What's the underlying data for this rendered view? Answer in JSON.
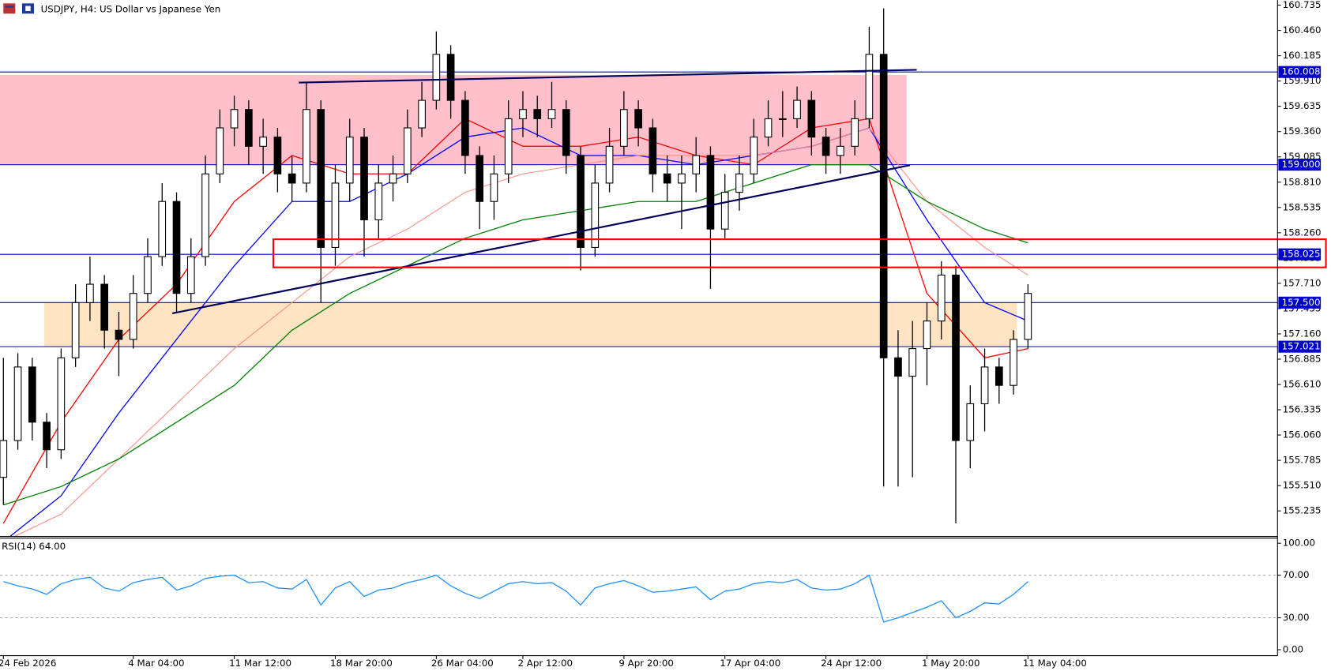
{
  "chart_data": [
    {
      "type": "candlestick",
      "title": "USDJPY, H4:  US Dollar vs Japanese Yen",
      "categories": [
        "24 Feb 2026",
        null,
        null,
        null,
        null,
        null,
        null,
        null,
        null,
        "4 Mar 04:00",
        null,
        null,
        null,
        null,
        null,
        null,
        "11 Mar 12:00",
        null,
        null,
        null,
        null,
        null,
        null,
        "18 Mar 20:00",
        null,
        null,
        null,
        null,
        null,
        null,
        "26 Mar 04:00",
        null,
        null,
        null,
        null,
        null,
        "2 Apr 12:00",
        null,
        null,
        null,
        null,
        null,
        null,
        "9 Apr 20:00",
        null,
        null,
        null,
        null,
        null,
        null,
        "17 Apr 04:00",
        null,
        null,
        null,
        null,
        null,
        null,
        "24 Apr 12:00",
        null,
        null,
        null,
        null,
        null,
        null,
        "1 May 20:00",
        null,
        null,
        null,
        null,
        null,
        null,
        "11 May 04:00"
      ],
      "open": [
        155.6,
        156.0,
        156.8,
        156.2,
        155.9,
        156.9,
        157.5,
        157.7,
        157.2,
        157.1,
        157.6,
        158.0,
        158.6,
        157.6,
        158.0,
        158.9,
        159.4,
        159.6,
        159.2,
        159.3,
        158.9,
        158.8,
        159.6,
        158.1,
        158.8,
        159.3,
        158.4,
        158.8,
        158.9,
        159.4,
        159.7,
        160.2,
        159.7,
        159.1,
        158.6,
        158.9,
        159.5,
        159.6,
        159.5,
        159.6,
        159.1,
        158.1,
        158.8,
        159.2,
        159.6,
        159.4,
        158.9,
        158.8,
        158.9,
        159.1,
        158.3,
        158.7,
        158.9,
        159.3,
        159.5,
        159.5,
        159.7,
        159.3,
        159.1,
        159.2,
        159.5,
        160.2,
        156.9,
        156.7,
        157.0,
        157.3,
        157.8,
        156.0,
        156.4,
        156.8,
        156.6,
        157.1
      ],
      "high": [
        156.9,
        156.95,
        156.9,
        156.3,
        157.0,
        157.7,
        158.0,
        157.8,
        157.4,
        157.8,
        158.2,
        158.8,
        158.7,
        158.2,
        159.1,
        159.6,
        159.75,
        159.7,
        159.5,
        159.4,
        159.1,
        159.9,
        159.7,
        159.0,
        159.5,
        159.4,
        159.0,
        159.1,
        159.6,
        159.9,
        160.45,
        160.3,
        159.8,
        159.2,
        159.1,
        159.7,
        159.8,
        159.75,
        159.9,
        159.7,
        159.2,
        159.0,
        159.4,
        159.8,
        159.7,
        159.5,
        159.1,
        159.1,
        159.3,
        159.2,
        158.9,
        159.1,
        159.5,
        159.7,
        159.8,
        159.85,
        159.8,
        159.4,
        159.4,
        159.7,
        160.5,
        160.7,
        157.2,
        157.3,
        157.5,
        157.95,
        157.9,
        156.6,
        157.0,
        156.9,
        157.2,
        157.7
      ],
      "low": [
        155.3,
        155.9,
        156.0,
        155.7,
        155.8,
        156.8,
        157.3,
        157.0,
        156.7,
        157.0,
        157.5,
        157.9,
        157.4,
        157.5,
        157.9,
        158.8,
        159.2,
        159.0,
        158.9,
        158.7,
        158.6,
        158.7,
        157.5,
        157.9,
        158.6,
        158.0,
        158.2,
        158.6,
        158.8,
        159.3,
        159.6,
        159.5,
        158.9,
        158.3,
        158.4,
        158.8,
        159.3,
        159.3,
        159.4,
        158.9,
        157.85,
        158.0,
        158.7,
        159.1,
        159.2,
        158.7,
        158.6,
        158.3,
        158.7,
        157.65,
        158.2,
        158.5,
        158.8,
        159.2,
        159.3,
        159.4,
        159.1,
        158.9,
        158.9,
        159.1,
        159.4,
        155.5,
        155.5,
        155.6,
        156.6,
        157.1,
        155.1,
        155.7,
        156.1,
        156.4,
        156.5,
        157.0
      ],
      "close": [
        156.0,
        156.8,
        156.2,
        155.9,
        156.9,
        157.5,
        157.7,
        157.2,
        157.1,
        157.6,
        158.0,
        158.6,
        157.6,
        158.0,
        158.9,
        159.4,
        159.6,
        159.2,
        159.3,
        158.9,
        158.8,
        159.6,
        158.1,
        158.8,
        159.3,
        158.4,
        158.8,
        158.9,
        159.4,
        159.7,
        160.2,
        159.7,
        159.1,
        158.6,
        158.9,
        159.5,
        159.6,
        159.5,
        159.6,
        159.1,
        158.1,
        158.8,
        159.2,
        159.6,
        159.4,
        158.9,
        158.8,
        158.9,
        159.1,
        158.3,
        158.7,
        158.9,
        159.3,
        159.5,
        159.5,
        159.7,
        159.3,
        159.1,
        159.2,
        159.5,
        160.2,
        156.9,
        156.7,
        157.0,
        157.3,
        157.8,
        156.0,
        156.4,
        156.8,
        156.6,
        157.1,
        157.6
      ],
      "up_color": "#ffffff",
      "down_color": "#000000",
      "series": [
        {
          "color": "#ff0000",
          "x": [
            0,
            4,
            8,
            12,
            16,
            20,
            24,
            28,
            32,
            36,
            40,
            44,
            48,
            52,
            56,
            60,
            64,
            68,
            71
          ],
          "values": [
            155.1,
            156.2,
            157.1,
            157.7,
            158.6,
            159.1,
            158.9,
            158.9,
            159.5,
            159.2,
            159.2,
            159.3,
            159.1,
            159.0,
            159.4,
            159.5,
            157.6,
            156.9,
            157.0
          ]
        },
        {
          "color": "#0000ff",
          "x": [
            0,
            4,
            8,
            12,
            16,
            20,
            24,
            28,
            32,
            36,
            40,
            44,
            48,
            52,
            56,
            60,
            64,
            68,
            71
          ],
          "values": [
            154.9,
            155.4,
            156.3,
            157.1,
            157.9,
            158.6,
            158.6,
            158.9,
            159.3,
            159.4,
            159.1,
            159.1,
            159.0,
            159.1,
            159.2,
            159.4,
            158.4,
            157.5,
            157.3
          ]
        },
        {
          "color": "#ff8c80",
          "x": [
            0,
            4,
            8,
            12,
            16,
            20,
            24,
            28,
            32,
            36,
            40,
            44,
            48,
            52,
            56,
            60,
            64,
            68,
            71
          ],
          "values": [
            154.9,
            155.2,
            155.8,
            156.4,
            157.0,
            157.5,
            158.0,
            158.3,
            158.7,
            158.9,
            159.0,
            159.1,
            159.1,
            159.1,
            159.2,
            159.4,
            158.6,
            158.1,
            157.8
          ]
        },
        {
          "color": "#008000",
          "x": [
            0,
            4,
            8,
            12,
            16,
            20,
            24,
            28,
            32,
            36,
            40,
            44,
            48,
            52,
            56,
            60,
            64,
            68,
            71
          ],
          "values": [
            155.3,
            155.5,
            155.8,
            156.2,
            156.6,
            157.2,
            157.6,
            157.9,
            158.2,
            158.4,
            158.5,
            158.6,
            158.6,
            158.8,
            159.0,
            159.0,
            158.6,
            158.3,
            158.15
          ]
        }
      ],
      "levels": [
        160.008,
        {
          "value": 159,
          "label": "159.000"
        },
        158.025,
        {
          "value": 157.5,
          "label": "157.500"
        },
        157.021
      ],
      "level_color": "#0000cd",
      "ylim": [
        154.957,
        160.791
      ],
      "yticks": [
        160.735,
        {
          "value": 160.46,
          "label": "160.460"
        },
        160.185,
        {
          "value": 159.91,
          "label": "159.910"
        },
        159.635,
        {
          "value": 159.36,
          "label": "159.360"
        },
        159.085,
        {
          "value": 158.81,
          "label": "158.810"
        },
        158.535,
        {
          "value": 158.26,
          "label": "158.260"
        },
        157.985,
        {
          "value": 157.71,
          "label": "157.710"
        },
        157.435,
        {
          "value": 157.16,
          "label": "157.160"
        },
        156.885,
        {
          "value": 156.61,
          "label": "156.610"
        },
        156.335,
        {
          "value": 156.06,
          "label": "156.060"
        },
        155.785,
        {
          "value": 155.51,
          "label": "155.510"
        },
        155.235
      ]
    },
    {
      "type": "line",
      "title": "RSI(14) 64.00",
      "color": "#1e90ff",
      "values": [
        64,
        60,
        57,
        52,
        62,
        66,
        68,
        58,
        55,
        63,
        66,
        68,
        56,
        60,
        67,
        69,
        70,
        63,
        64,
        58,
        57,
        66,
        42,
        58,
        64,
        50,
        56,
        58,
        63,
        66,
        70,
        60,
        53,
        48,
        55,
        62,
        64,
        62,
        63,
        55,
        42,
        58,
        62,
        65,
        60,
        54,
        55,
        57,
        59,
        47,
        55,
        57,
        62,
        64,
        63,
        66,
        58,
        56,
        57,
        62,
        70,
        26,
        30,
        35,
        40,
        46,
        30,
        36,
        44,
        43,
        52,
        64
      ],
      "levels": [
        70,
        30
      ],
      "ylim": [
        -5.6,
        104.8
      ],
      "yticks": [
        {
          "value": 100,
          "label": "100.00"
        },
        {
          "value": 70,
          "label": "70.00"
        },
        {
          "value": 30,
          "label": "30.00"
        },
        {
          "value": 0,
          "label": "0.00"
        }
      ]
    }
  ]
}
